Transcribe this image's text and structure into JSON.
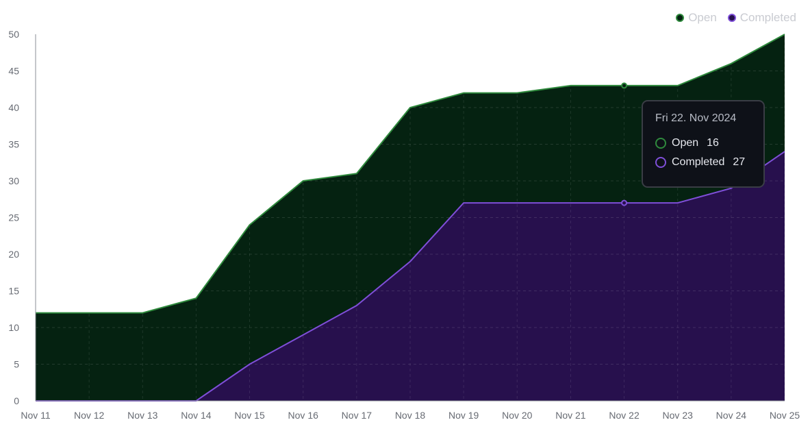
{
  "chart_data": {
    "type": "area",
    "stacked": true,
    "categories": [
      "Nov 11",
      "Nov 12",
      "Nov 13",
      "Nov 14",
      "Nov 15",
      "Nov 16",
      "Nov 17",
      "Nov 18",
      "Nov 19",
      "Nov 20",
      "Nov 21",
      "Nov 22",
      "Nov 23",
      "Nov 24",
      "Nov 25"
    ],
    "series": [
      {
        "name": "Completed",
        "color": "#7f4fd9",
        "fill": "#27104d",
        "values": [
          0,
          0,
          0,
          0,
          5,
          9,
          13,
          19,
          27,
          27,
          27,
          27,
          27,
          29,
          34
        ]
      },
      {
        "name": "Open",
        "color": "#2f8a3d",
        "fill": "#052211",
        "values": [
          12,
          12,
          12,
          14,
          19,
          21,
          18,
          21,
          15,
          15,
          16,
          16,
          16,
          17,
          16
        ]
      }
    ],
    "ylim": [
      0,
      50
    ],
    "yticks": [
      0,
      5,
      10,
      15,
      20,
      25,
      30,
      35,
      40,
      45,
      50
    ],
    "grid": true,
    "legend_position": "top-right",
    "tooltip": {
      "title": "Fri 22. Nov 2024",
      "category": "Nov 22",
      "rows": [
        {
          "name": "Open",
          "value": "16",
          "color": "#2f8a3d"
        },
        {
          "name": "Completed",
          "value": "27",
          "color": "#7f4fd9"
        }
      ]
    }
  },
  "legend": {
    "items": [
      {
        "label": "Open",
        "color": "#2f8a3d",
        "fill": "#052211"
      },
      {
        "label": "Completed",
        "color": "#7f4fd9",
        "fill": "#27104d"
      }
    ]
  }
}
